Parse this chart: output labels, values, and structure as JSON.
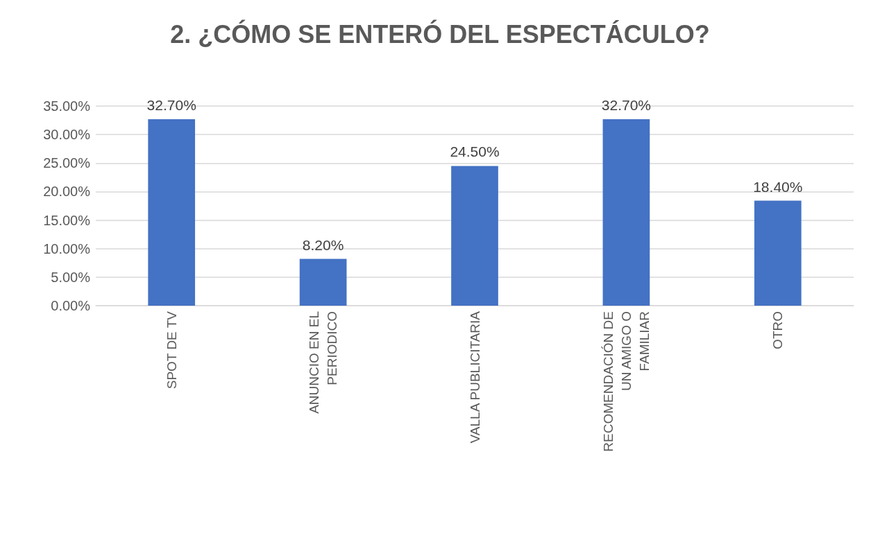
{
  "chart_data": {
    "type": "bar",
    "title": "2. ¿CÓMO SE ENTERÓ DEL ESPECTÁCULO?",
    "categories": [
      "SPOT DE TV",
      "ANUNCIO EN EL PERIODICO",
      "VALLA PUBLICITARIA",
      "RECOMENDACIÓN DE UN AMIGO O FAMILIAR",
      "OTRO"
    ],
    "values": [
      32.7,
      8.2,
      24.5,
      32.7,
      18.4
    ],
    "value_labels": [
      "32.70%",
      "8.20%",
      "24.50%",
      "32.70%",
      "18.40%"
    ],
    "color": "#4472c4",
    "ylim": [
      0,
      35
    ],
    "yticks": [
      {
        "value": 0,
        "label": "0.00%"
      },
      {
        "value": 5,
        "label": "5.00%"
      },
      {
        "value": 10,
        "label": "10.00%"
      },
      {
        "value": 15,
        "label": "15.00%"
      },
      {
        "value": 20,
        "label": "20.00%"
      },
      {
        "value": 25,
        "label": "25.00%"
      },
      {
        "value": 30,
        "label": "30.00%"
      },
      {
        "value": 35,
        "label": "35.00%"
      }
    ],
    "grid": "y"
  }
}
